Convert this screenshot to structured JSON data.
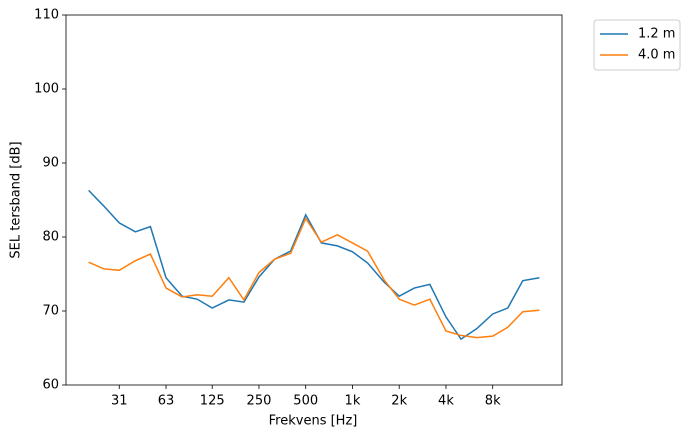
{
  "chart_data": {
    "type": "line",
    "xlabel": "Frekvens [Hz]",
    "ylabel": "SEL tersband [dB]",
    "x": [
      20,
      25,
      31.5,
      40,
      50,
      63,
      80,
      100,
      125,
      160,
      200,
      250,
      315,
      400,
      500,
      630,
      800,
      1000,
      1250,
      1600,
      2000,
      2500,
      3150,
      4000,
      5000,
      6300,
      8000,
      10000,
      12500,
      16000
    ],
    "xscale": "log",
    "xlim": [
      14.3,
      22350
    ],
    "xticks": [
      {
        "value": 31.5,
        "label": "31"
      },
      63,
      125,
      250,
      500,
      {
        "value": 1000,
        "label": "1k"
      },
      {
        "value": 2000,
        "label": "2k"
      },
      {
        "value": 4000,
        "label": "4k"
      },
      {
        "value": 8000,
        "label": "8k"
      }
    ],
    "ylim": [
      60,
      110
    ],
    "yticks": [
      60,
      70,
      80,
      90,
      100,
      110
    ],
    "legend": "outside upper right",
    "series": [
      {
        "name": "1.2 m",
        "color": "#1f77b4",
        "values": [
          86.3,
          84.2,
          81.9,
          80.7,
          81.4,
          74.5,
          72.0,
          71.6,
          70.4,
          71.5,
          71.2,
          74.6,
          77.0,
          78.1,
          83.0,
          79.2,
          78.8,
          78.0,
          76.5,
          73.9,
          72.0,
          73.1,
          73.6,
          69.2,
          66.2,
          67.6,
          69.6,
          70.4,
          74.1,
          74.5
        ]
      },
      {
        "name": "4.0 m",
        "color": "#ff7f0e",
        "values": [
          76.6,
          75.7,
          75.5,
          76.8,
          77.7,
          73.1,
          71.9,
          72.2,
          72.0,
          74.5,
          71.5,
          75.2,
          77.0,
          77.8,
          82.5,
          79.3,
          80.3,
          79.2,
          78.1,
          74.2,
          71.6,
          70.8,
          71.6,
          67.3,
          66.7,
          66.4,
          66.6,
          67.8,
          69.9,
          70.1
        ]
      }
    ]
  }
}
